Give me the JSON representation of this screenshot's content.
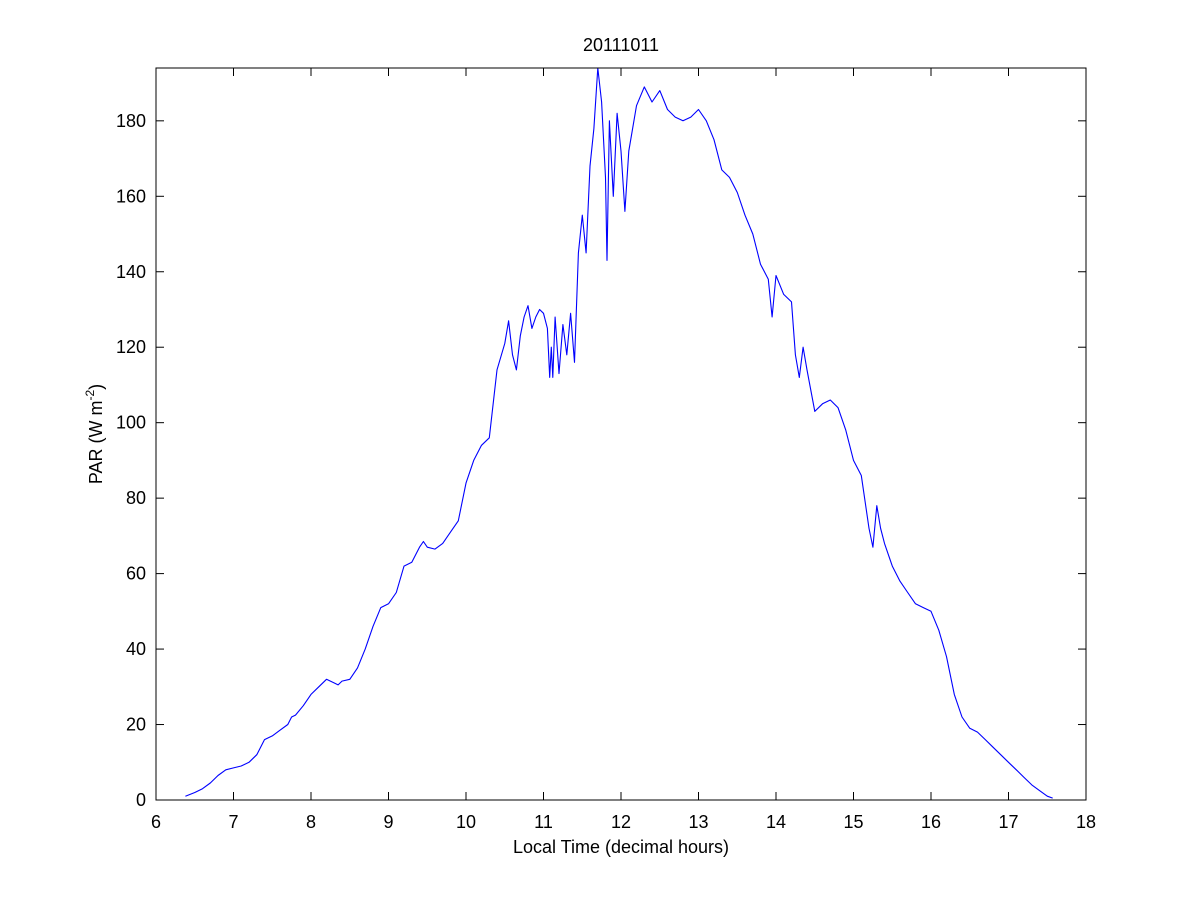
{
  "chart_data": {
    "type": "line",
    "title": "20111011",
    "xlabel": "Local Time (decimal hours)",
    "ylabel": {
      "base": "PAR (W m",
      "superscript": "-2",
      "close": ")"
    },
    "xlim": [
      6,
      18
    ],
    "ylim": [
      0,
      194
    ],
    "xticks": [
      6,
      7,
      8,
      9,
      10,
      11,
      12,
      13,
      14,
      15,
      16,
      17,
      18
    ],
    "yticks": [
      0,
      20,
      40,
      60,
      80,
      100,
      120,
      140,
      160,
      180
    ],
    "grid": false,
    "box": true,
    "line_color": "#0000ff",
    "series": [
      {
        "x": [
          6.38,
          6.5,
          6.6,
          6.7,
          6.8,
          6.9,
          7.0,
          7.1,
          7.2,
          7.3,
          7.4,
          7.5,
          7.6,
          7.7,
          7.75,
          7.8,
          7.9,
          8.0,
          8.1,
          8.2,
          8.3,
          8.35,
          8.4,
          8.5,
          8.6,
          8.7,
          8.8,
          8.9,
          9.0,
          9.1,
          9.2,
          9.3,
          9.4,
          9.45,
          9.5,
          9.6,
          9.7,
          9.8,
          9.9,
          10.0,
          10.1,
          10.2,
          10.3,
          10.4,
          10.5,
          10.55,
          10.6,
          10.65,
          10.7,
          10.75,
          10.8,
          10.85,
          10.9,
          10.95,
          11.0,
          11.05,
          11.08,
          11.1,
          11.12,
          11.15,
          11.2,
          11.25,
          11.3,
          11.35,
          11.4,
          11.45,
          11.5,
          11.55,
          11.6,
          11.65,
          11.7,
          11.75,
          11.8,
          11.82,
          11.85,
          11.9,
          11.95,
          12.0,
          12.05,
          12.1,
          12.2,
          12.3,
          12.4,
          12.5,
          12.6,
          12.7,
          12.8,
          12.9,
          13.0,
          13.1,
          13.2,
          13.3,
          13.4,
          13.5,
          13.6,
          13.7,
          13.8,
          13.9,
          13.95,
          14.0,
          14.1,
          14.2,
          14.25,
          14.3,
          14.35,
          14.4,
          14.5,
          14.6,
          14.7,
          14.8,
          14.9,
          15.0,
          15.1,
          15.2,
          15.25,
          15.3,
          15.35,
          15.4,
          15.5,
          15.6,
          15.7,
          15.8,
          15.9,
          16.0,
          16.1,
          16.2,
          16.3,
          16.4,
          16.5,
          16.6,
          16.7,
          16.8,
          16.9,
          17.0,
          17.1,
          17.2,
          17.3,
          17.4,
          17.5,
          17.57
        ],
        "y": [
          1.0,
          2.0,
          3.0,
          4.5,
          6.5,
          8.0,
          8.5,
          9.0,
          10.0,
          12.0,
          16.0,
          17.0,
          18.5,
          20.0,
          22.0,
          22.5,
          25.0,
          28.0,
          30.0,
          32.0,
          31.0,
          30.5,
          31.5,
          32.0,
          35.0,
          40.0,
          46.0,
          51.0,
          52.0,
          55.0,
          62.0,
          63.0,
          67.0,
          68.5,
          67.0,
          66.5,
          68.0,
          71.0,
          74.0,
          84.0,
          90.0,
          94.0,
          96.0,
          114.0,
          121.0,
          127.0,
          118.0,
          114.0,
          123.0,
          128.0,
          131.0,
          125.0,
          128.0,
          130.0,
          129.0,
          125.0,
          112.0,
          120.0,
          112.0,
          128.0,
          113.0,
          126.0,
          118.0,
          129.0,
          116.0,
          145.0,
          155.0,
          145.0,
          168.0,
          178.0,
          194.0,
          185.0,
          165.0,
          143.0,
          180.0,
          160.0,
          182.0,
          172.0,
          156.0,
          172.0,
          184.0,
          189.0,
          185.0,
          188.0,
          183.0,
          181.0,
          180.0,
          181.0,
          183.0,
          180.0,
          175.0,
          167.0,
          165.0,
          161.0,
          155.0,
          150.0,
          142.0,
          138.0,
          128.0,
          139.0,
          134.0,
          132.0,
          118.0,
          112.0,
          120.0,
          114.0,
          103.0,
          105.0,
          106.0,
          104.0,
          98.0,
          90.0,
          86.0,
          72.0,
          67.0,
          78.0,
          72.0,
          68.0,
          62.0,
          58.0,
          55.0,
          52.0,
          51.0,
          50.0,
          45.0,
          38.0,
          28.0,
          22.0,
          19.0,
          18.0,
          16.0,
          14.0,
          12.0,
          10.0,
          8.0,
          6.0,
          4.0,
          2.5,
          1.0,
          0.5
        ]
      }
    ]
  }
}
